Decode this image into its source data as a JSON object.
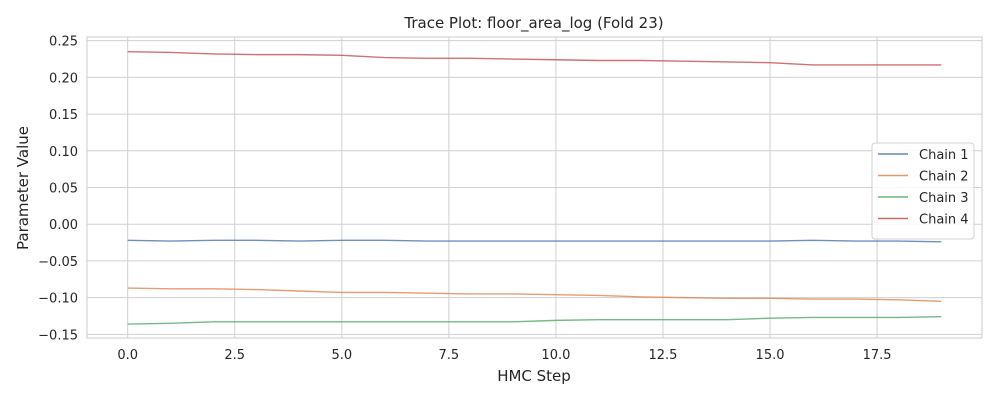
{
  "chart_data": {
    "type": "line",
    "title": "Trace Plot: floor_area_log (Fold 23)",
    "xlabel": "HMC Step",
    "ylabel": "Parameter Value",
    "xlim": [
      -0.95,
      19.95
    ],
    "ylim": [
      -0.155,
      0.255
    ],
    "x_ticks": [
      0.0,
      2.5,
      5.0,
      7.5,
      10.0,
      12.5,
      15.0,
      17.5
    ],
    "x_tick_labels": [
      "0.0",
      "2.5",
      "5.0",
      "7.5",
      "10.0",
      "12.5",
      "15.0",
      "17.5"
    ],
    "y_ticks": [
      -0.15,
      -0.1,
      -0.05,
      0.0,
      0.05,
      0.1,
      0.15,
      0.2,
      0.25
    ],
    "y_tick_labels": [
      "−0.15",
      "−0.10",
      "−0.05",
      "0.00",
      "0.05",
      "0.10",
      "0.15",
      "0.20",
      "0.25"
    ],
    "grid": true,
    "legend_position": "right",
    "x": [
      0,
      1,
      2,
      3,
      4,
      5,
      6,
      7,
      8,
      9,
      10,
      11,
      12,
      13,
      14,
      15,
      16,
      17,
      18,
      19
    ],
    "series": [
      {
        "name": "Chain 1",
        "color": "#4c72b0",
        "values": [
          -0.022,
          -0.023,
          -0.022,
          -0.022,
          -0.023,
          -0.022,
          -0.022,
          -0.023,
          -0.023,
          -0.023,
          -0.023,
          -0.023,
          -0.023,
          -0.023,
          -0.023,
          -0.023,
          -0.022,
          -0.023,
          -0.023,
          -0.024
        ]
      },
      {
        "name": "Chain 2",
        "color": "#dd8452",
        "values": [
          -0.087,
          -0.088,
          -0.088,
          -0.089,
          -0.091,
          -0.093,
          -0.093,
          -0.094,
          -0.095,
          -0.095,
          -0.096,
          -0.097,
          -0.099,
          -0.1,
          -0.101,
          -0.101,
          -0.102,
          -0.102,
          -0.103,
          -0.105
        ]
      },
      {
        "name": "Chain 3",
        "color": "#55a868",
        "values": [
          -0.136,
          -0.135,
          -0.133,
          -0.133,
          -0.133,
          -0.133,
          -0.133,
          -0.133,
          -0.133,
          -0.133,
          -0.131,
          -0.13,
          -0.13,
          -0.13,
          -0.13,
          -0.128,
          -0.127,
          -0.127,
          -0.127,
          -0.126
        ]
      },
      {
        "name": "Chain 4",
        "color": "#c44e52",
        "values": [
          0.235,
          0.234,
          0.232,
          0.231,
          0.231,
          0.23,
          0.227,
          0.226,
          0.226,
          0.225,
          0.224,
          0.223,
          0.223,
          0.222,
          0.221,
          0.22,
          0.217,
          0.217,
          0.217,
          0.217
        ]
      }
    ]
  }
}
